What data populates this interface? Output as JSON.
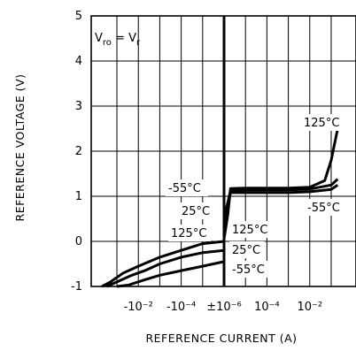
{
  "chart_data": {
    "type": "line",
    "title": "",
    "xlabel": "REFERENCE CURRENT (A)",
    "ylabel": "REFERENCE VOLTAGE (V)",
    "x_scale": "signed-log",
    "xlim": [
      -1,
      0.2
    ],
    "ylim": [
      -1,
      5
    ],
    "grid": true,
    "x_tick_labels": [
      "-10⁻²",
      "-10⁻⁴",
      "±10⁻⁶",
      "10⁻⁴",
      "10⁻²"
    ],
    "x_tick_values": [
      -0.01,
      -0.0001,
      1e-06,
      0.0001,
      0.01
    ],
    "y_ticks": [
      -1,
      0,
      1,
      2,
      3,
      4,
      5
    ],
    "annotation": {
      "text_main": "V",
      "sub1": "ro",
      "eq": " = V",
      "sub2": "r"
    },
    "series": [
      {
        "name": "125°C",
        "points": [
          [
            -0.5,
            -1.0
          ],
          [
            -0.2,
            -0.9
          ],
          [
            -0.05,
            -0.7
          ],
          [
            -0.01,
            -0.55
          ],
          [
            -0.001,
            -0.35
          ],
          [
            -0.0001,
            -0.2
          ],
          [
            -1e-05,
            -0.05
          ],
          [
            -1e-06,
            0.0
          ],
          [
            1e-06,
            0.05
          ],
          [
            1.5e-06,
            0.6
          ],
          [
            2e-06,
            1.17
          ],
          [
            1e-05,
            1.18
          ],
          [
            0.0001,
            1.18
          ],
          [
            0.001,
            1.18
          ],
          [
            0.01,
            1.2
          ],
          [
            0.05,
            1.35
          ],
          [
            0.1,
            1.8
          ],
          [
            0.2,
            2.5
          ]
        ]
      },
      {
        "name": "25°C",
        "points": [
          [
            -0.3,
            -1.0
          ],
          [
            -0.1,
            -0.9
          ],
          [
            -0.02,
            -0.75
          ],
          [
            -0.005,
            -0.65
          ],
          [
            -0.001,
            -0.5
          ],
          [
            -0.0001,
            -0.35
          ],
          [
            -1e-05,
            -0.25
          ],
          [
            -1e-06,
            -0.2
          ],
          [
            1e-06,
            0.5
          ],
          [
            2e-06,
            1.13
          ],
          [
            1e-05,
            1.14
          ],
          [
            0.0001,
            1.14
          ],
          [
            0.001,
            1.14
          ],
          [
            0.01,
            1.16
          ],
          [
            0.1,
            1.25
          ],
          [
            0.2,
            1.38
          ]
        ]
      },
      {
        "name": "-55°C",
        "points": [
          [
            -0.1,
            -1.0
          ],
          [
            -0.03,
            -0.97
          ],
          [
            -0.005,
            -0.85
          ],
          [
            -0.001,
            -0.75
          ],
          [
            -0.0001,
            -0.65
          ],
          [
            -1e-05,
            -0.55
          ],
          [
            -1e-06,
            -0.45
          ],
          [
            1e-06,
            0.4
          ],
          [
            2e-06,
            1.08
          ],
          [
            1e-05,
            1.08
          ],
          [
            0.0001,
            1.08
          ],
          [
            0.001,
            1.08
          ],
          [
            0.01,
            1.1
          ],
          [
            0.1,
            1.15
          ],
          [
            0.2,
            1.25
          ]
        ]
      }
    ],
    "annotations": [
      {
        "text": "125°C"
      },
      {
        "text": "-55°C"
      },
      {
        "text": "25°C"
      },
      {
        "text": "125°C"
      },
      {
        "text": "-55°C"
      },
      {
        "text": "125°C"
      },
      {
        "text": "25°C"
      },
      {
        "text": "-55°C"
      }
    ]
  }
}
